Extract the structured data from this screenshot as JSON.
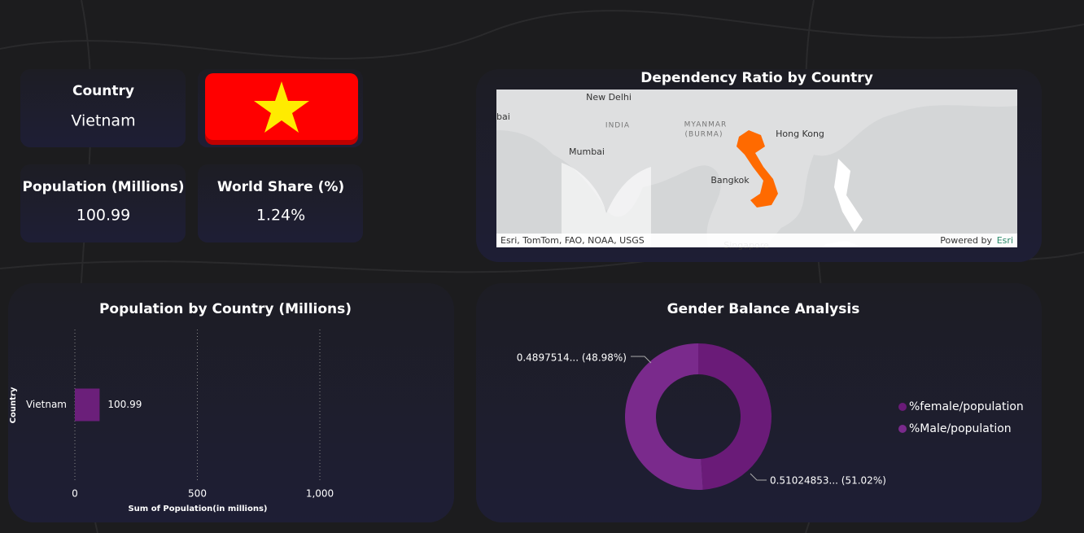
{
  "cards": [
    {
      "title": "Country",
      "value": "Vietnam"
    },
    {
      "title": "Population (Millions)",
      "value": "100.99"
    },
    {
      "title": "World Share (%)",
      "value": "1.24%"
    }
  ],
  "map": {
    "title": "Dependency Ratio by Country",
    "labels": [
      "New Delhi",
      "INDIA",
      "MYANMAR",
      "(BURMA)",
      "Hong Kong",
      "Mumbai",
      "Bangkok",
      "Singapore",
      "bai"
    ],
    "attribution": "Esri, TomTom, FAO, NOAA, USGS",
    "powered": "Powered by",
    "provider": "Esri"
  },
  "chart_data": [
    {
      "type": "bar",
      "title": "Population by Country (Millions)",
      "categories": [
        "Vietnam"
      ],
      "values": [
        100.99
      ],
      "color": "#6b1f7a",
      "xlim": [
        0,
        1000
      ],
      "xticks": [
        0,
        500,
        {
          "value": 1000,
          "label": "1,000"
        }
      ],
      "x_label": "Sum of Population(in millions)",
      "y_label": "Country",
      "grid": true
    },
    {
      "type": "donut",
      "title": "Gender Balance Analysis",
      "categories": [
        "%female/population",
        "%Male/population"
      ],
      "values": [
        0.4897514,
        0.51024853
      ],
      "value_labels": [
        "0.4897514... (48.98%)",
        "0.51024853... (51.02%)"
      ],
      "colors": [
        "#6a1b78",
        "#7a2a8c"
      ],
      "legend": "right"
    }
  ]
}
